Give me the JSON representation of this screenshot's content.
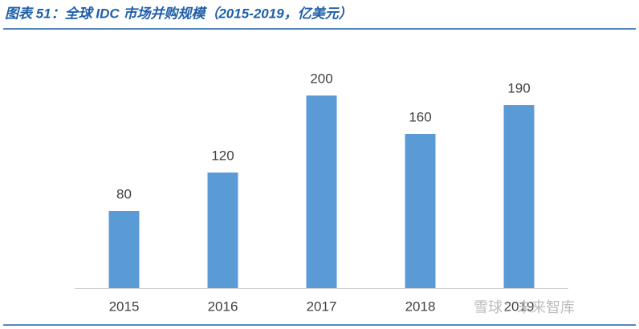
{
  "chart_data": {
    "type": "bar",
    "title": "图表 51：全球 IDC 市场并购规模（2015-2019，亿美元）",
    "categories": [
      "2015",
      "2016",
      "2017",
      "2018",
      "2019"
    ],
    "values": [
      80,
      120,
      200,
      160,
      190
    ],
    "color": "#5b9bd5",
    "ylim": [
      0,
      250
    ],
    "data_labels": true
  },
  "watermark": "雪球：未来智库"
}
